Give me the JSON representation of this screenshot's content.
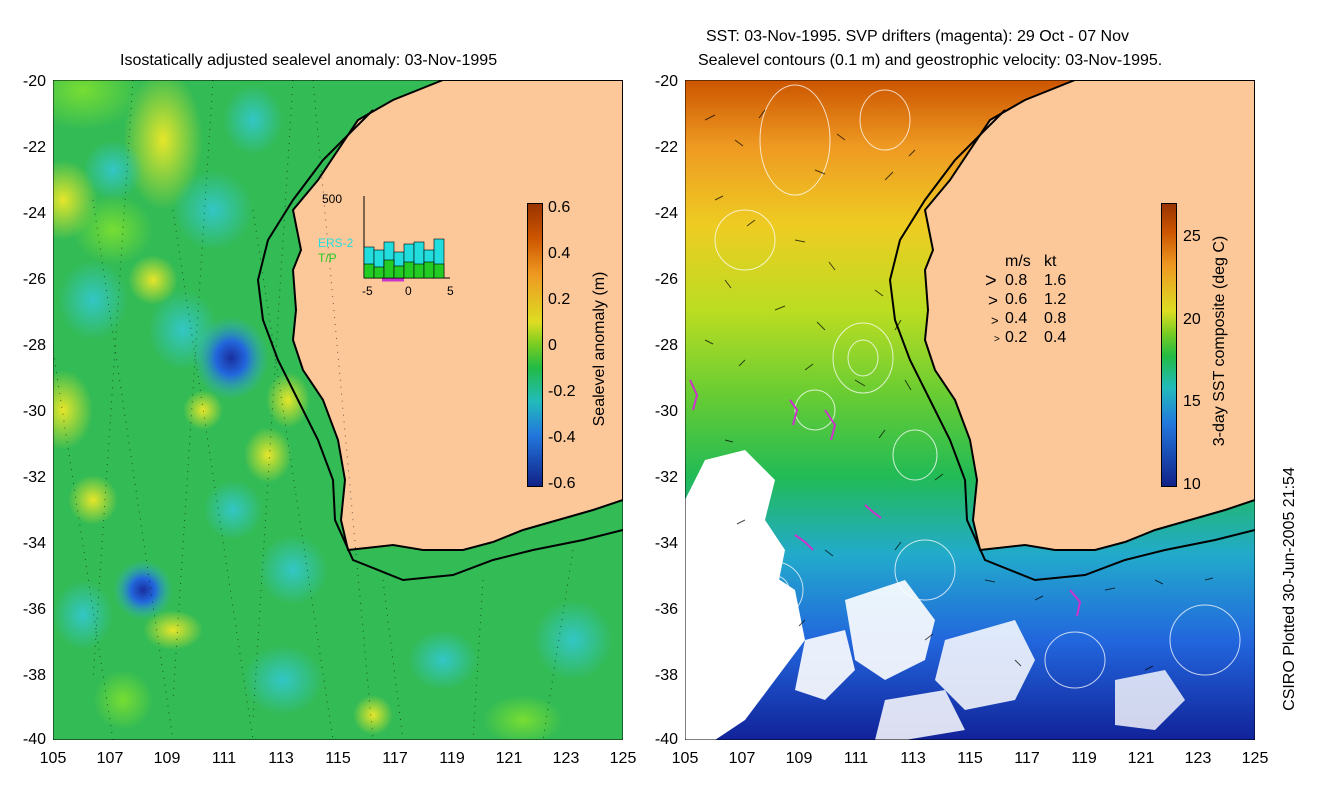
{
  "left_panel": {
    "title": "Isostatically adjusted sealevel anomaly: 03-Nov-1995",
    "y_ticks": [
      "-20",
      "-22",
      "-24",
      "-26",
      "-28",
      "-30",
      "-32",
      "-34",
      "-36",
      "-38",
      "-40"
    ],
    "x_ticks": [
      "105",
      "107",
      "109",
      "111",
      "113",
      "115",
      "117",
      "119",
      "121",
      "123",
      "125"
    ],
    "colorbar": {
      "label": "Sealevel anomaly (m)",
      "ticks": [
        "0.6",
        "0.4",
        "0.2",
        "0",
        "-0.2",
        "-0.4",
        "-0.6"
      ]
    },
    "inset": {
      "y_top_label": "500",
      "x_ticks": [
        "-5",
        "0",
        "5"
      ],
      "legend": [
        {
          "label": "ERS-2",
          "color": "#22dddd"
        },
        {
          "label": "T/P",
          "color": "#22cc22"
        }
      ]
    }
  },
  "right_panel": {
    "title_line1": "SST: 03-Nov-1995. SVP drifters (magenta): 29 Oct - 07 Nov",
    "title_line2": "Sealevel contours (0.1 m) and geostrophic velocity: 03-Nov-1995.",
    "y_ticks": [
      "-20",
      "-22",
      "-24",
      "-26",
      "-28",
      "-30",
      "-32",
      "-34",
      "-36",
      "-38",
      "-40"
    ],
    "x_ticks": [
      "105",
      "107",
      "109",
      "111",
      "113",
      "115",
      "117",
      "119",
      "121",
      "123",
      "125"
    ],
    "colorbar": {
      "label": "3-day SST composite (deg C)",
      "ticks": [
        "25",
        "20",
        "15",
        "10"
      ]
    },
    "velocity_legend": {
      "header_ms": "m/s",
      "header_kt": "kt",
      "rows": [
        {
          "ms": "0.8",
          "kt": "1.6"
        },
        {
          "ms": "0.6",
          "kt": "1.2"
        },
        {
          "ms": "0.4",
          "kt": "0.8"
        },
        {
          "ms": "0.2",
          "kt": "0.4"
        }
      ]
    }
  },
  "footer_credit": "CSIRO Plotted 30-Jun-2005 21:54",
  "colors": {
    "land": "#fcc89a",
    "ocean_mid": "#22bb44",
    "ocean_warm": "#eedd22",
    "ocean_cold": "#2288ee",
    "sst_hot": "#cc5500",
    "sst_cold": "#002299",
    "drifter": "#cc33cc"
  }
}
